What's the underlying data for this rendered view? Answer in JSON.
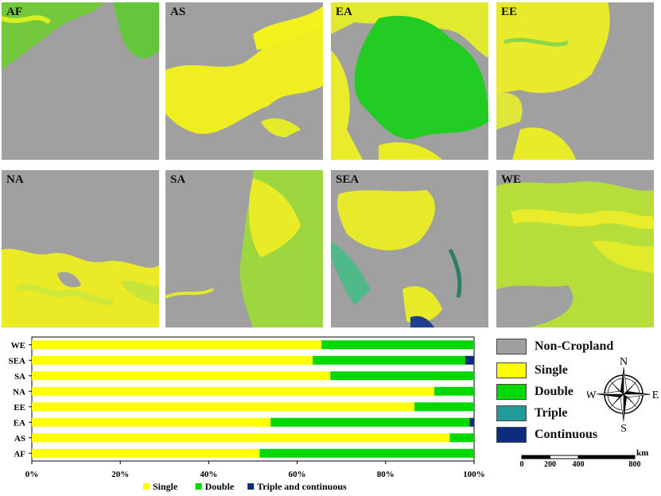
{
  "panels": [
    {
      "label": "AF"
    },
    {
      "label": "AS"
    },
    {
      "label": "EA"
    },
    {
      "label": "EE"
    },
    {
      "label": "NA"
    },
    {
      "label": "SA"
    },
    {
      "label": "SEA"
    },
    {
      "label": "WE"
    }
  ],
  "colors": {
    "non_cropland": "#a0a0a0",
    "single": "#ffff00",
    "double": "#00d800",
    "triple": "#209c96",
    "continuous": "#0c2d7a"
  },
  "map_legend": [
    {
      "label": "Non-Cropland",
      "color": "#a0a0a0"
    },
    {
      "label": "Single",
      "color": "#ffff00"
    },
    {
      "label": "Double",
      "color": "#00d800"
    },
    {
      "label": "Triple",
      "color": "#209c96"
    },
    {
      "label": "Continuous",
      "color": "#0c2d7a"
    }
  ],
  "compass": {
    "n": "N",
    "s": "S",
    "e": "E",
    "w": "W"
  },
  "scale_bar": {
    "unit": "km",
    "ticks": [
      "0",
      "200",
      "400",
      "800"
    ],
    "tick_values": [
      0,
      200,
      400,
      800
    ]
  },
  "chart_data": {
    "type": "bar",
    "orientation": "horizontal",
    "stacked": true,
    "categories": [
      "WE",
      "SEA",
      "SA",
      "NA",
      "EE",
      "EA",
      "AS",
      "AF"
    ],
    "series": [
      {
        "name": "Single",
        "color": "#ffff00",
        "values": [
          65.5,
          63.5,
          67.5,
          91,
          86.5,
          54,
          94.5,
          51.5
        ]
      },
      {
        "name": "Double",
        "color": "#00d800",
        "values": [
          34.5,
          34.5,
          32.5,
          9,
          13.5,
          45,
          5.5,
          48.5
        ]
      },
      {
        "name": "Triple and continuous",
        "color": "#0c2d7a",
        "values": [
          0,
          2,
          0,
          0,
          0,
          1,
          0,
          0
        ]
      }
    ],
    "xticks": [
      "0%",
      "20%",
      "40%",
      "60%",
      "80%",
      "100%"
    ],
    "xlim": [
      0,
      100
    ],
    "legend_position": "bottom"
  }
}
